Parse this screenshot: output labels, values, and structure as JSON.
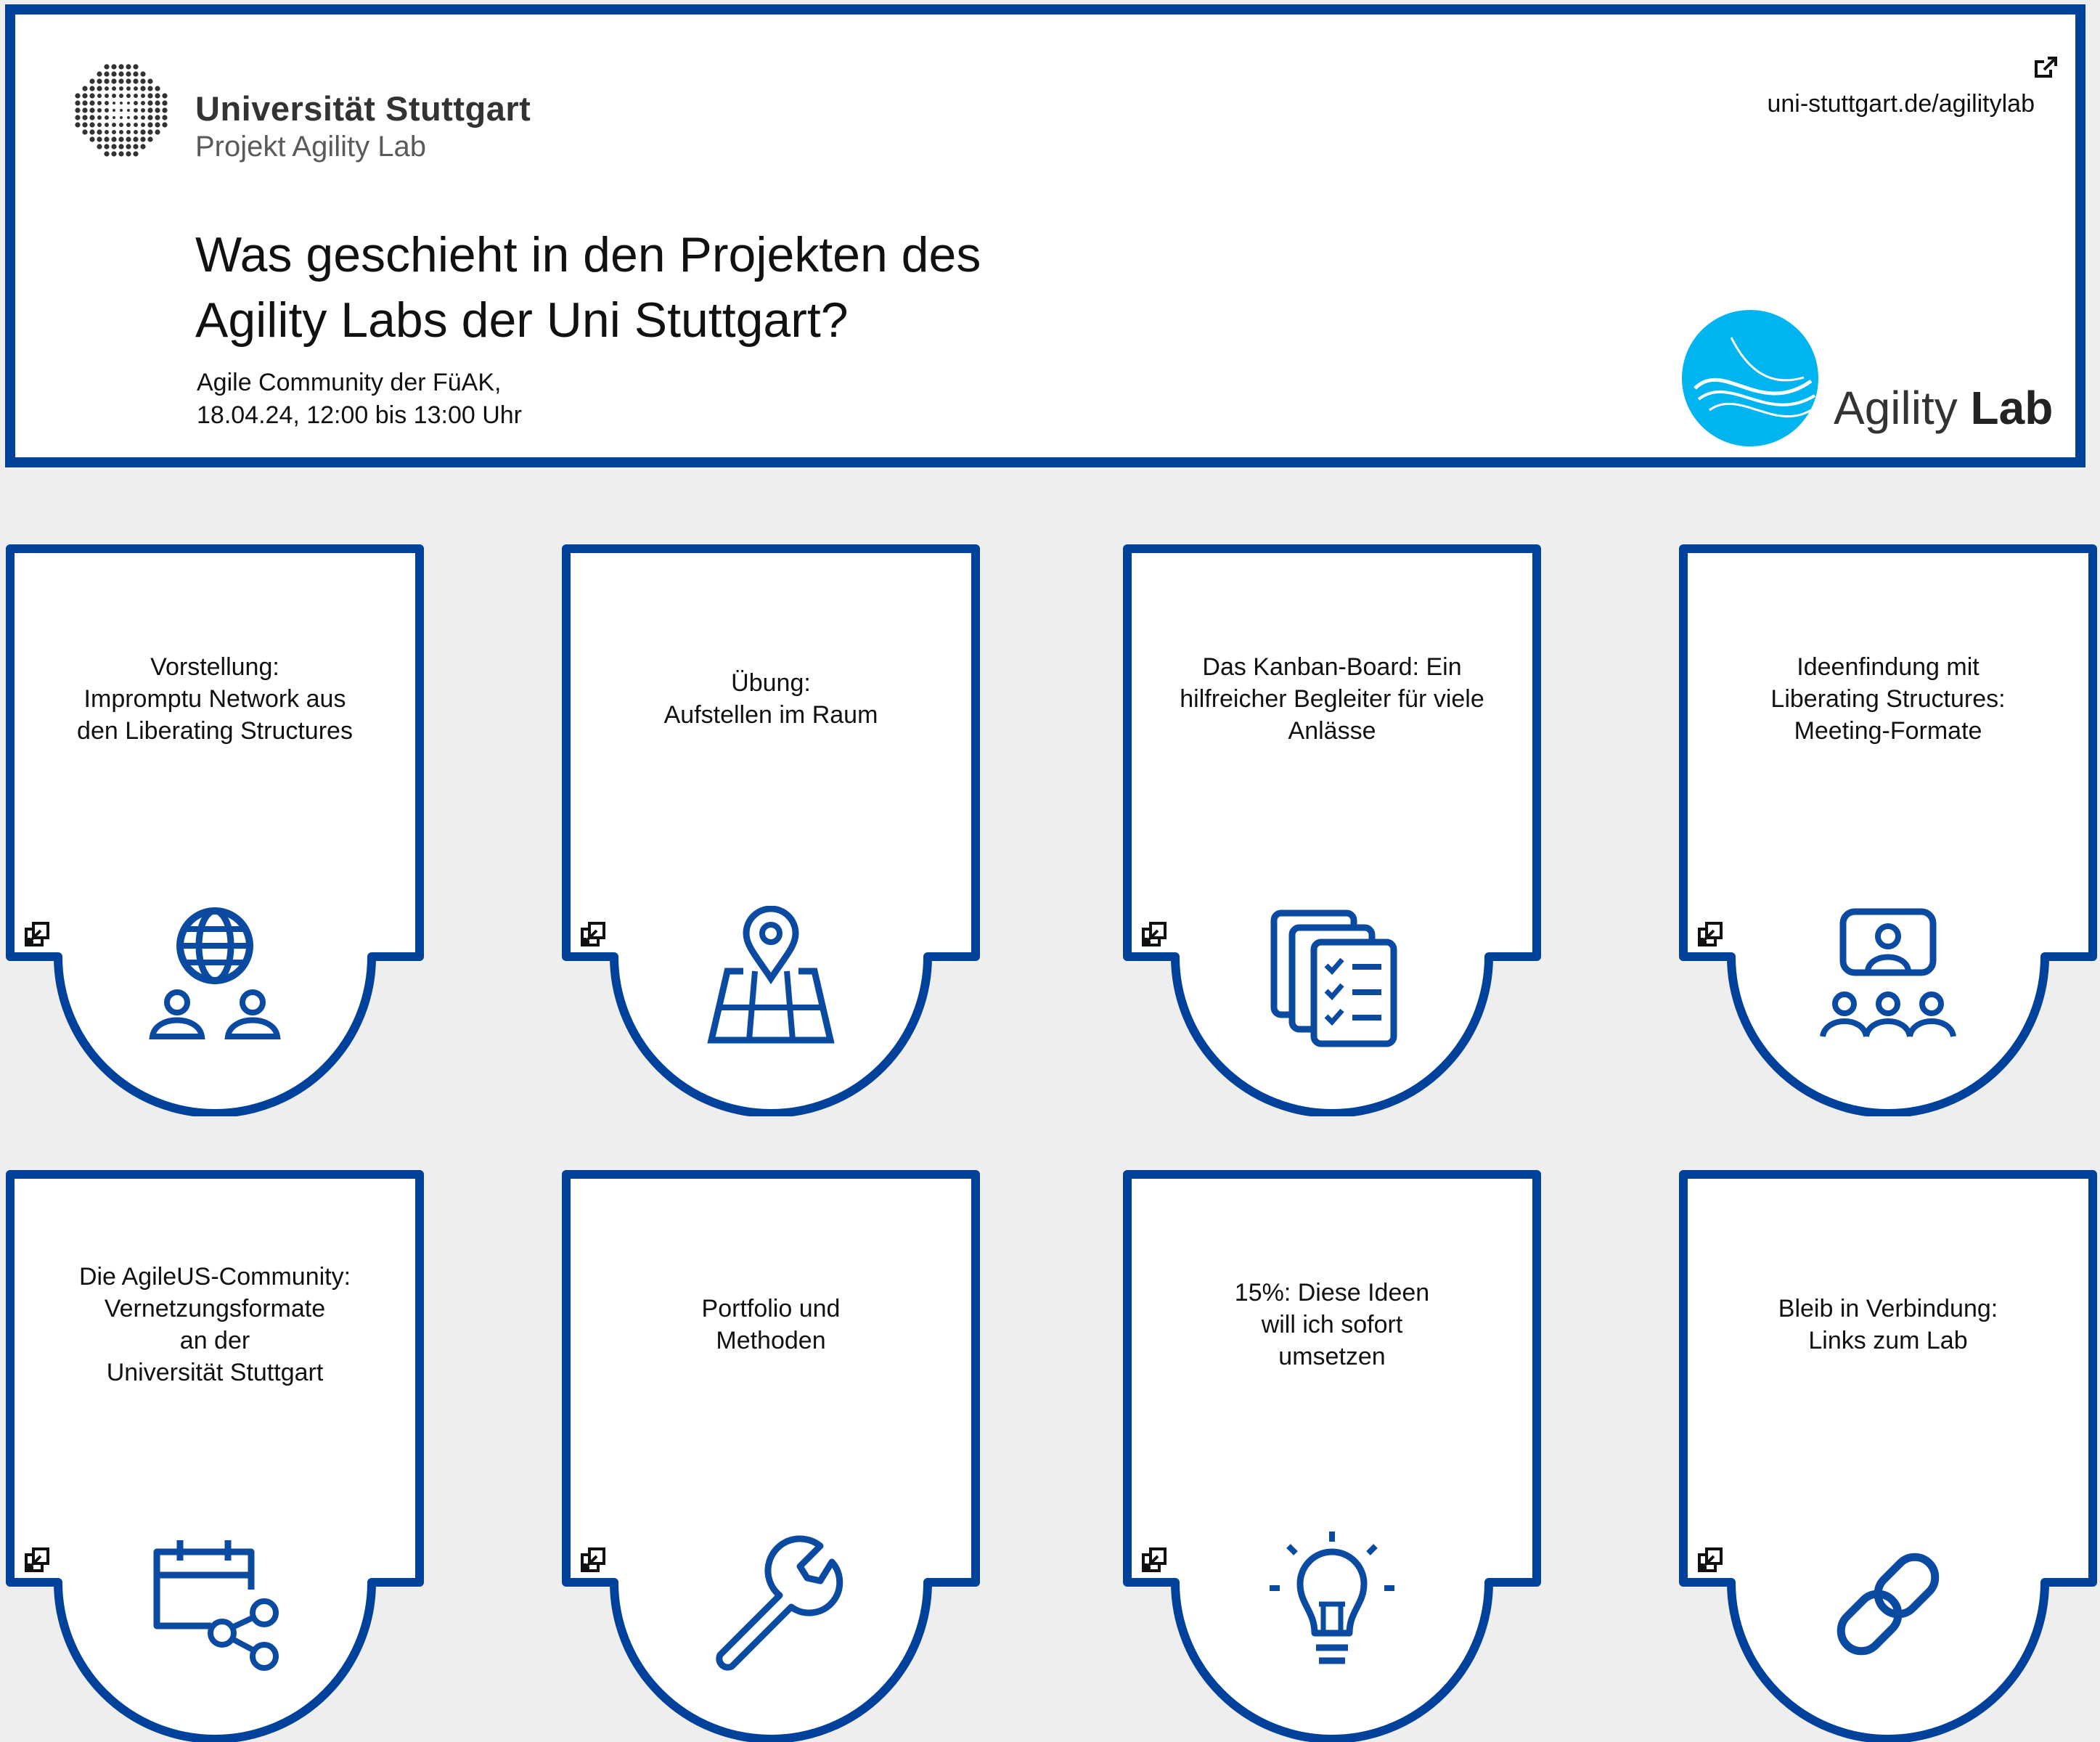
{
  "header": {
    "university": "Universität Stuttgart",
    "project": "Projekt Agility Lab",
    "title_line1": "Was geschieht in den Projekten des",
    "title_line2": "Agility Labs der Uni Stuttgart?",
    "event_line1": "Agile Community der FüAK,",
    "event_line2": "18.04.24, 12:00 bis 13:00 Uhr",
    "url": "uni-stuttgart.de/agilitylab",
    "logo_word1": "Agility",
    "logo_word2": "Lab"
  },
  "colors": {
    "accent": "#00419b",
    "logo_cyan": "#00b5ef",
    "background": "#eeeeee"
  },
  "cards": [
    {
      "lines": [
        "Vorstellung:",
        "Impromptu Network aus",
        "den Liberating Structures"
      ],
      "icon": "globe-people-icon"
    },
    {
      "lines": [
        "Übung:",
        "Aufstellen im Raum"
      ],
      "icon": "map-pin-icon"
    },
    {
      "lines": [
        "Das Kanban-Board: Ein",
        "hilfreicher Begleiter für viele",
        "Anlässe"
      ],
      "icon": "checklist-icon"
    },
    {
      "lines": [
        "Ideenfindung mit",
        "Liberating Structures:",
        "Meeting-Formate"
      ],
      "icon": "meeting-icon"
    },
    {
      "lines": [
        "Die AgileUS-Community:",
        "Vernetzungsformate",
        "an der",
        "Universität Stuttgart"
      ],
      "icon": "calendar-share-icon"
    },
    {
      "lines": [
        "Portfolio und",
        "Methoden"
      ],
      "icon": "wrench-icon"
    },
    {
      "lines": [
        "15%: Diese Ideen",
        "will ich sofort",
        "umsetzen"
      ],
      "icon": "lightbulb-icon"
    },
    {
      "lines": [
        "Bleib in Verbindung:",
        "Links zum Lab"
      ],
      "icon": "link-icon"
    }
  ]
}
